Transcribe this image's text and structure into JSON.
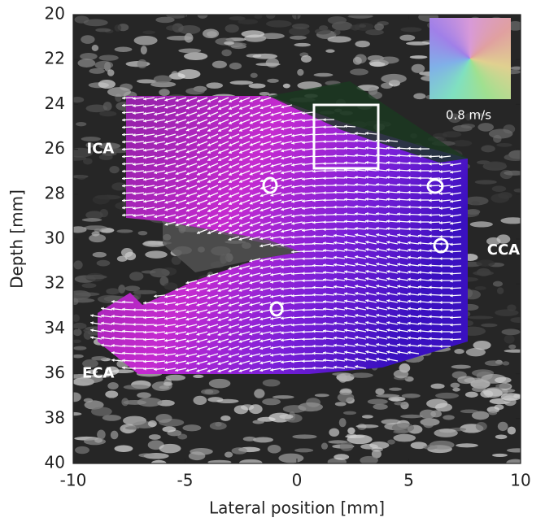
{
  "chart_data": {
    "type": "image",
    "xlabel": "Lateral position [mm]",
    "ylabel": "Depth [mm]",
    "xlim": [
      -10,
      10
    ],
    "xticks": [
      -10,
      -5,
      0,
      5,
      10
    ],
    "ylim": [
      40,
      20
    ],
    "yticks": [
      20,
      22,
      24,
      26,
      28,
      30,
      32,
      34,
      36,
      38,
      40
    ],
    "annotations": [
      {
        "text": "ICA",
        "x": -9.4,
        "y": 26
      },
      {
        "text": "CCA",
        "x": 8.5,
        "y": 30.5
      },
      {
        "text": "ECA",
        "x": -9.6,
        "y": 36
      }
    ],
    "legend_label": "0.8 m/s"
  }
}
